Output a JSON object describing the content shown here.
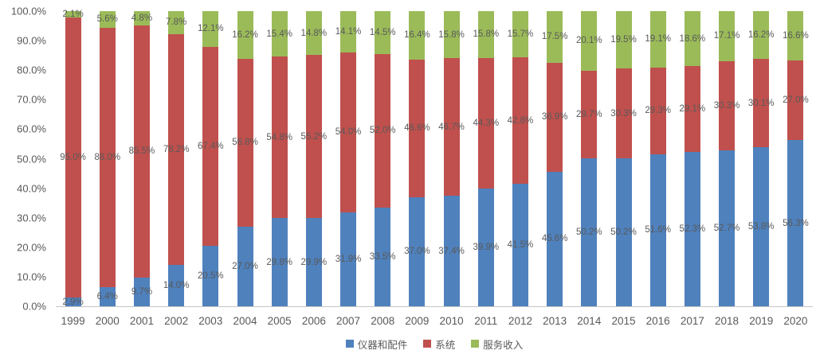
{
  "chart_data": {
    "type": "bar",
    "subtype": "stacked-100-percent",
    "title": "",
    "grid": false,
    "legend_position": "bottom",
    "categories": [
      "1999",
      "2000",
      "2001",
      "2002",
      "2003",
      "2004",
      "2005",
      "2006",
      "2007",
      "2008",
      "2009",
      "2010",
      "2011",
      "2012",
      "2013",
      "2014",
      "2015",
      "2016",
      "2017",
      "2018",
      "2019",
      "2020"
    ],
    "series": [
      {
        "name": "仪器和配件",
        "key": "instruments-and-accessories",
        "color": "#4F81BD",
        "values": [
          2.9,
          6.4,
          9.7,
          14.0,
          20.5,
          27.0,
          29.8,
          29.9,
          31.9,
          33.5,
          37.0,
          37.4,
          39.9,
          41.5,
          45.6,
          50.2,
          50.2,
          51.6,
          52.3,
          52.7,
          53.8,
          56.3
        ]
      },
      {
        "name": "系统",
        "key": "systems",
        "color": "#C0504D",
        "values": [
          95.0,
          88.0,
          85.5,
          78.2,
          67.4,
          56.8,
          54.8,
          55.2,
          54.0,
          52.0,
          46.6,
          46.7,
          44.3,
          42.8,
          36.9,
          29.7,
          30.3,
          29.3,
          29.1,
          30.3,
          30.1,
          27.0
        ]
      },
      {
        "name": "服务收入",
        "key": "service-revenue",
        "color": "#9BBB59",
        "values": [
          2.1,
          5.6,
          4.8,
          7.8,
          12.1,
          16.2,
          15.4,
          14.8,
          14.1,
          14.5,
          16.4,
          15.8,
          15.8,
          15.7,
          17.5,
          20.1,
          19.5,
          19.1,
          18.6,
          17.1,
          16.2,
          16.6
        ]
      }
    ],
    "y_axis": {
      "min": 0,
      "max": 100,
      "ticks": [
        "100.0%",
        "90.0%",
        "80.0%",
        "70.0%",
        "60.0%",
        "50.0%",
        "40.0%",
        "30.0%",
        "20.0%",
        "10.0%",
        "0.0%"
      ]
    },
    "colors": {
      "label_text": "#595959",
      "axis_text": "#595959",
      "baseline": "#C6C6C6",
      "background": "#FFFFFF"
    }
  }
}
